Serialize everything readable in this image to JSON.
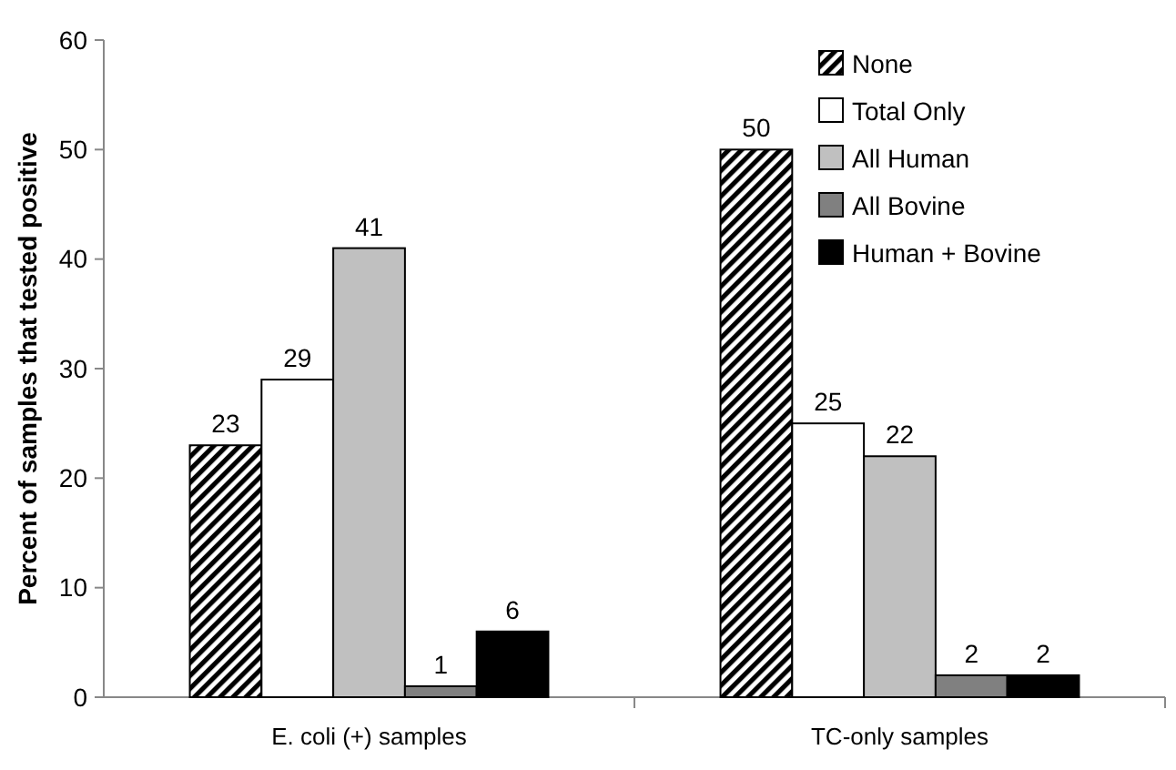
{
  "chart_data": {
    "type": "bar",
    "ylabel": "Percent of samples that tested positive",
    "categories": [
      "E. coli (+) samples",
      "TC-only samples"
    ],
    "series": [
      {
        "name": "None",
        "color": "#000000",
        "values": [
          23,
          50
        ]
      },
      {
        "name": "Total Only",
        "color": "#ffffff",
        "values": [
          29,
          25
        ]
      },
      {
        "name": "All Human",
        "color": "#c0c0c0",
        "values": [
          41,
          22
        ]
      },
      {
        "name": "All Bovine",
        "color": "#808080",
        "values": [
          1,
          2
        ]
      },
      {
        "name": "Human + Bovine",
        "color": "#000000",
        "values": [
          6,
          2
        ]
      }
    ],
    "ylim": [
      0,
      60
    ],
    "yticks": [
      0,
      10,
      20,
      30,
      40,
      50,
      60
    ],
    "data_labels": true,
    "legend": "top right",
    "grid": false
  }
}
